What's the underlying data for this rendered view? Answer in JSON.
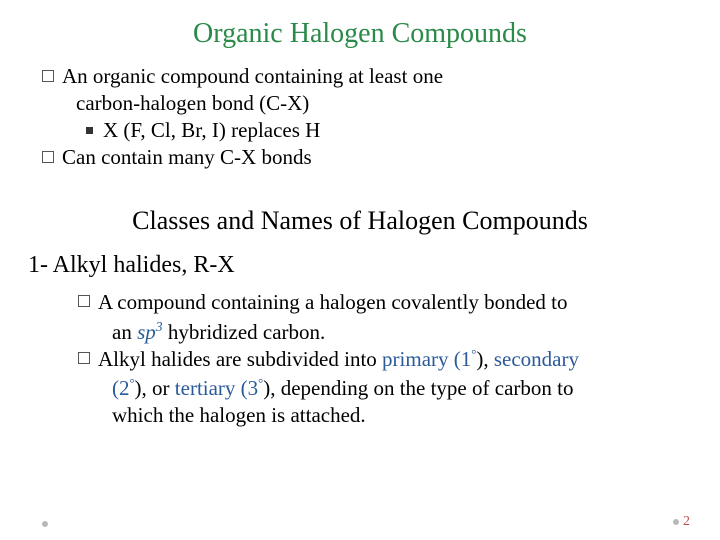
{
  "colors": {
    "title": "#2a8a4a",
    "body": "#000000",
    "accent_blue": "#2a5a9a",
    "page_num": "#c0504d",
    "background": "#ffffff"
  },
  "title": "Organic Halogen Compounds",
  "bullets": {
    "b1_line1": "An organic compound containing at least one",
    "b1_line2": "carbon-halogen bond (C-X)",
    "b1_sub": "X (F, Cl, Br, I) replaces H",
    "b2": "Can contain many C-X bonds"
  },
  "subtitle": "Classes and Names of Halogen Compounds",
  "section": {
    "heading": "1- Alkyl halides, R-X",
    "s1_a": "A compound containing a halogen covalently bonded to",
    "s1_b_pre": "an ",
    "s1_b_sp": "sp",
    "s1_b_sup": "3",
    "s1_b_post": " hybridized carbon.",
    "s2_a_pre": "Alkyl halides are subdivided into ",
    "s2_a_prim": "primary (1",
    "s2_a_mid1": "), ",
    "s2_a_sec": "secondary",
    "s2_b_open": "(2",
    "s2_b_mid": "), or ",
    "s2_b_tert": "tertiary (3",
    "s2_b_close": "), depending on the type of carbon to",
    "s2_c": "which the halogen is attached.",
    "ring": "°"
  },
  "page_number": "2"
}
